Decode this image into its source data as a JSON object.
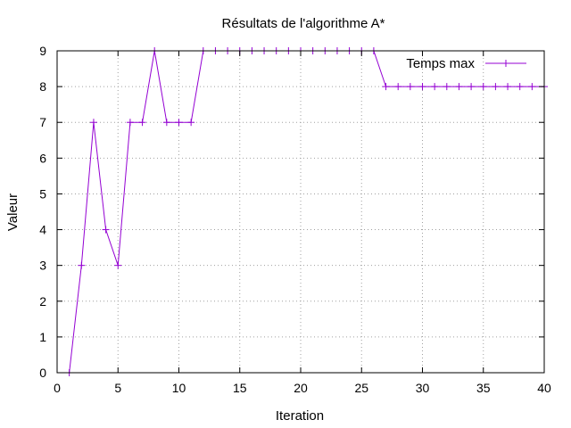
{
  "chart_data": {
    "type": "line",
    "title": "Résultats de l'algorithme A*",
    "xlabel": "Iteration",
    "ylabel": "Valeur",
    "xlim": [
      0,
      40
    ],
    "ylim": [
      0,
      9
    ],
    "xticks": [
      0,
      5,
      10,
      15,
      20,
      25,
      30,
      35,
      40
    ],
    "yticks": [
      0,
      1,
      2,
      3,
      4,
      5,
      6,
      7,
      8,
      9
    ],
    "grid": true,
    "legend_position": "top-right",
    "series": [
      {
        "name": "Temps max",
        "color": "#9400d3",
        "marker": "plus",
        "x": [
          1,
          2,
          3,
          4,
          5,
          6,
          7,
          8,
          9,
          10,
          11,
          12,
          13,
          14,
          15,
          16,
          17,
          18,
          19,
          20,
          21,
          22,
          23,
          24,
          25,
          26,
          27,
          28,
          29,
          30,
          31,
          32,
          33,
          34,
          35,
          36,
          37,
          38,
          39,
          40
        ],
        "y": [
          0,
          3,
          7,
          4,
          3,
          7,
          7,
          9,
          7,
          7,
          7,
          9,
          9,
          9,
          9,
          9,
          9,
          9,
          9,
          9,
          9,
          9,
          9,
          9,
          9,
          9,
          8,
          8,
          8,
          8,
          8,
          8,
          8,
          8,
          8,
          8,
          8,
          8,
          8,
          8
        ]
      }
    ]
  }
}
